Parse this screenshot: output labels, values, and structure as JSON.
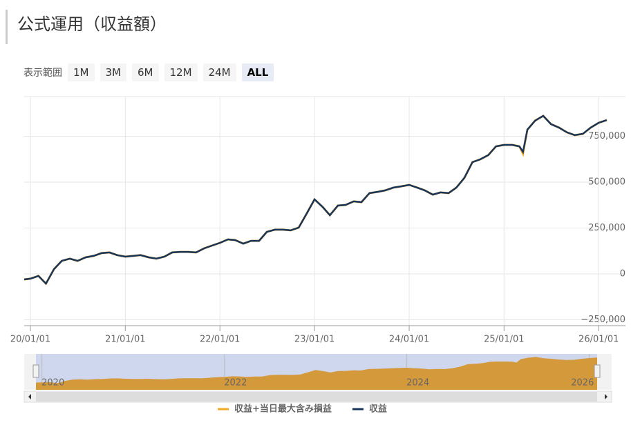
{
  "header": {
    "title": "公式運用（収益額）"
  },
  "range_selector": {
    "label": "表示範囲",
    "buttons": [
      "1M",
      "3M",
      "6M",
      "12M",
      "24M",
      "ALL"
    ],
    "active": "ALL"
  },
  "chart_data": {
    "type": "line",
    "x": [
      "2019-12-08",
      "2020-01-01",
      "2020-02-01",
      "2020-03-01",
      "2020-04-01",
      "2020-05-01",
      "2020-06-01",
      "2020-07-01",
      "2020-08-01",
      "2020-09-01",
      "2020-10-01",
      "2020-11-01",
      "2020-12-01",
      "2021-01-01",
      "2021-02-01",
      "2021-03-01",
      "2021-04-01",
      "2021-05-01",
      "2021-06-01",
      "2021-07-01",
      "2021-08-01",
      "2021-09-01",
      "2021-10-01",
      "2021-11-01",
      "2021-12-01",
      "2022-01-01",
      "2022-02-01",
      "2022-03-01",
      "2022-04-01",
      "2022-05-01",
      "2022-06-01",
      "2022-07-01",
      "2022-08-01",
      "2022-09-01",
      "2022-10-01",
      "2022-11-01",
      "2022-12-01",
      "2023-01-01",
      "2023-02-01",
      "2023-03-01",
      "2023-04-01",
      "2023-05-01",
      "2023-06-01",
      "2023-07-01",
      "2023-08-01",
      "2023-09-01",
      "2023-10-01",
      "2023-11-01",
      "2023-12-01",
      "2024-01-01",
      "2024-02-01",
      "2024-03-01",
      "2024-04-01",
      "2024-05-01",
      "2024-06-01",
      "2024-07-01",
      "2024-08-01",
      "2024-09-01",
      "2024-10-01",
      "2024-11-01",
      "2024-12-01",
      "2025-01-01",
      "2025-02-01",
      "2025-03-01",
      "2025-03-15",
      "2025-04-01",
      "2025-05-01",
      "2025-06-01",
      "2025-07-01",
      "2025-08-01",
      "2025-09-01",
      "2025-10-01",
      "2025-11-01",
      "2025-12-01",
      "2026-01-01",
      "2026-02-01"
    ],
    "series": [
      {
        "name": "収益+当日最大含み損益",
        "color": "#f5a623",
        "values": [
          -30000,
          -26000,
          -11000,
          -53000,
          26000,
          71000,
          83000,
          71000,
          90000,
          98000,
          113000,
          117000,
          102000,
          94000,
          98000,
          102000,
          90000,
          83000,
          94000,
          117000,
          120000,
          120000,
          117000,
          139000,
          154000,
          169000,
          188000,
          184000,
          165000,
          180000,
          180000,
          229000,
          241000,
          241000,
          237000,
          252000,
          327000,
          406000,
          365000,
          320000,
          372000,
          376000,
          395000,
          391000,
          440000,
          447000,
          455000,
          470000,
          477000,
          485000,
          470000,
          455000,
          432000,
          444000,
          440000,
          470000,
          523000,
          609000,
          624000,
          647000,
          695000,
          703000,
          703000,
          695000,
          655000,
          786000,
          835000,
          861000,
          816000,
          797000,
          771000,
          756000,
          763000,
          797000,
          823000,
          838000
        ]
      },
      {
        "name": "収益",
        "color": "#17365d",
        "values": [
          -30000,
          -26000,
          -11000,
          -53000,
          26000,
          71000,
          83000,
          71000,
          90000,
          98000,
          113000,
          117000,
          102000,
          94000,
          98000,
          102000,
          90000,
          83000,
          94000,
          117000,
          120000,
          120000,
          117000,
          139000,
          154000,
          169000,
          188000,
          184000,
          165000,
          180000,
          180000,
          229000,
          241000,
          241000,
          237000,
          252000,
          327000,
          406000,
          365000,
          320000,
          372000,
          376000,
          395000,
          391000,
          440000,
          447000,
          455000,
          470000,
          477000,
          485000,
          470000,
          455000,
          432000,
          444000,
          440000,
          470000,
          523000,
          609000,
          624000,
          647000,
          695000,
          703000,
          703000,
          695000,
          665000,
          786000,
          835000,
          861000,
          816000,
          797000,
          771000,
          756000,
          763000,
          797000,
          823000,
          838000
        ]
      }
    ],
    "xlim": [
      "2019-12-08",
      "2026-02-20"
    ],
    "xticks": [
      {
        "value": "2020-01-01",
        "label": "20/01/01"
      },
      {
        "value": "2021-01-01",
        "label": "21/01/01"
      },
      {
        "value": "2022-01-01",
        "label": "22/01/01"
      },
      {
        "value": "2023-01-01",
        "label": "23/01/01"
      },
      {
        "value": "2024-01-01",
        "label": "24/01/01"
      },
      {
        "value": "2025-01-01",
        "label": "25/01/01"
      },
      {
        "value": "2026-01-01",
        "label": "26/01/01"
      }
    ],
    "ylim": [
      -282000,
      966000
    ],
    "yticks": [
      {
        "value": -250000,
        "label": "−250,000"
      },
      0,
      {
        "value": 250000,
        "label": "250,000"
      },
      {
        "value": 500000,
        "label": "500,000"
      },
      {
        "value": 750000,
        "label": "750,000"
      }
    ],
    "grid": true,
    "navigator_ticks": [
      {
        "value": "2020-01-01",
        "label": "2020"
      },
      {
        "value": "2022-01-01",
        "label": "2022"
      },
      {
        "value": "2024-01-01",
        "label": "2024"
      },
      {
        "value": "2026-01-01",
        "label": "2026"
      }
    ]
  }
}
